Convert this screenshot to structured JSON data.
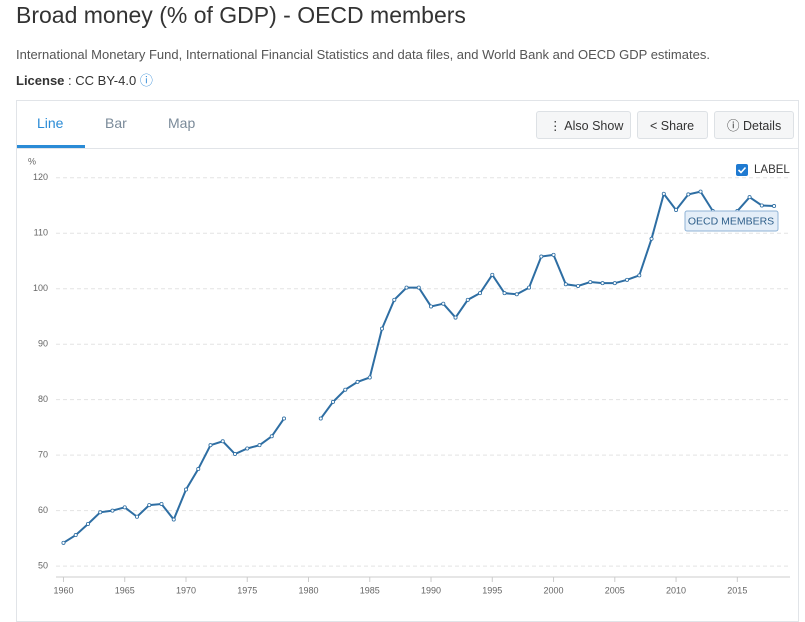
{
  "header": {
    "title": "Broad money (% of GDP) - OECD members",
    "source": "International Monetary Fund, International Financial Statistics and data files, and World Bank and OECD GDP estimates.",
    "license_label": "License",
    "license_value": ": CC BY-4.0"
  },
  "tabs": [
    "Line",
    "Bar",
    "Map"
  ],
  "buttons": [
    "Also Show",
    "Share",
    "Details"
  ],
  "label_toggle": "LABEL",
  "chart_data": {
    "type": "line",
    "y_unit": "%",
    "x": [
      1960,
      1961,
      1962,
      1963,
      1964,
      1965,
      1966,
      1967,
      1968,
      1969,
      1970,
      1971,
      1972,
      1973,
      1974,
      1975,
      1976,
      1977,
      1978,
      1979,
      1980,
      1981,
      1982,
      1983,
      1984,
      1985,
      1986,
      1987,
      1988,
      1989,
      1990,
      1991,
      1992,
      1993,
      1994,
      1995,
      1996,
      1997,
      1998,
      1999,
      2000,
      2001,
      2002,
      2003,
      2004,
      2005,
      2006,
      2007,
      2008,
      2009,
      2010,
      2011,
      2012,
      2013,
      2014,
      2015,
      2016,
      2017,
      2018
    ],
    "series": [
      {
        "name": "OECD MEMBERS",
        "color": "#2e6ea3",
        "values": [
          54.2,
          55.6,
          57.6,
          59.7,
          60.0,
          60.6,
          58.9,
          61.0,
          61.2,
          58.4,
          63.8,
          67.5,
          71.8,
          72.5,
          70.2,
          71.2,
          71.8,
          73.4,
          76.6,
          null,
          null,
          76.6,
          79.6,
          81.8,
          83.2,
          84.0,
          92.8,
          98.0,
          100.2,
          100.2,
          96.8,
          97.3,
          94.8,
          98.0,
          99.2,
          102.5,
          99.2,
          99.0,
          100.2,
          105.8,
          106.1,
          100.8,
          100.5,
          101.2,
          101.0,
          101.0,
          101.6,
          102.4,
          109.0,
          117.1,
          114.2,
          117.0,
          117.5,
          114.0,
          113.5,
          114.0,
          116.5,
          115.0,
          114.9
        ]
      }
    ],
    "xlim": [
      1958.9,
      2019.3
    ],
    "ylim": [
      48.4,
      122.3
    ],
    "xticks": [
      1960,
      1965,
      1970,
      1975,
      1980,
      1985,
      1990,
      1995,
      2000,
      2005,
      2010,
      2015
    ],
    "yticks": [
      50,
      60,
      70,
      80,
      90,
      100,
      110,
      120
    ],
    "grid": true
  }
}
